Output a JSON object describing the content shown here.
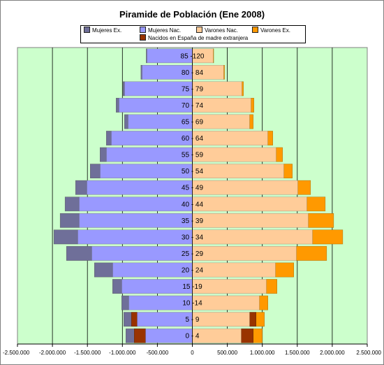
{
  "chart_data": {
    "type": "bar",
    "orientation": "horizontal",
    "title": "Piramide de Población (Ene 2008)",
    "categories": [
      "0 - 4",
      "5 - 9",
      "10 -14",
      "15 -19",
      "20 - 24",
      "25 - 29",
      "30 - 34",
      "35 - 39",
      "40 - 44",
      "45 - 49",
      "50 - 54",
      "55 - 59",
      "60 - 64",
      "65 - 69",
      "70 - 74",
      "75 - 79",
      "80 - 84",
      "85 -120"
    ],
    "series": [
      {
        "name": "Mujeres Ex.",
        "side": "left",
        "color": "#6f6f99",
        "values": [
          120000,
          110000,
          100000,
          130000,
          260000,
          360000,
          340000,
          270000,
          200000,
          160000,
          140000,
          90000,
          70000,
          50000,
          40000,
          20000,
          15000,
          10000
        ]
      },
      {
        "name": "Mujeres Nac.",
        "side": "left",
        "color": "#9999ff",
        "values": [
          830000,
          870000,
          910000,
          1010000,
          1140000,
          1440000,
          1640000,
          1620000,
          1620000,
          1510000,
          1320000,
          1230000,
          1160000,
          920000,
          1050000,
          970000,
          720000,
          650000
        ]
      },
      {
        "name": "Varones Nac.",
        "side": "right",
        "color": "#ffcc99",
        "values": [
          870000,
          910000,
          960000,
          1060000,
          1190000,
          1490000,
          1720000,
          1660000,
          1640000,
          1510000,
          1310000,
          1200000,
          1080000,
          820000,
          840000,
          710000,
          450000,
          300000
        ]
      },
      {
        "name": "Varones Ex.",
        "side": "right",
        "color": "#ff9900",
        "values": [
          130000,
          120000,
          120000,
          150000,
          260000,
          430000,
          430000,
          360000,
          260000,
          180000,
          120000,
          90000,
          70000,
          50000,
          40000,
          20000,
          10000,
          5000
        ]
      },
      {
        "name": "Nacidos en España de madre extranjera",
        "color": "#993300",
        "values_left": [
          160000,
          80000,
          0,
          0,
          0,
          0,
          0,
          0,
          0,
          0,
          0,
          0,
          0,
          0,
          0,
          0,
          0,
          0
        ],
        "values_right": [
          170000,
          90000,
          0,
          0,
          0,
          0,
          0,
          0,
          0,
          0,
          0,
          0,
          0,
          0,
          0,
          0,
          0,
          0
        ]
      }
    ],
    "x_ticks": [
      "-2.500.000",
      "-2.000.000",
      "-1.500.000",
      "-1.000.000",
      "-500.000",
      "0",
      "500.000",
      "1.000.000",
      "1.500.000",
      "2.000.000",
      "2.500.000"
    ],
    "xlim": [
      -2500000,
      2500000
    ],
    "grid": true,
    "plot_background": "#ccffcc",
    "legend_position": "top"
  }
}
